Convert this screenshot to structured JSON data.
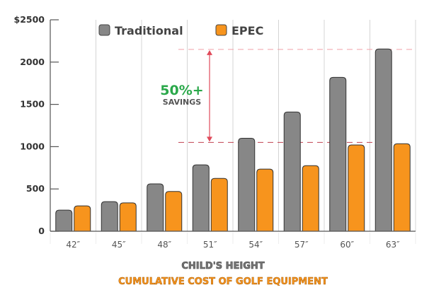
{
  "chart_data": {
    "type": "bar",
    "title": "CUMULATIVE COST OF GOLF EQUIPMENT",
    "xlabel": "CHILD'S HEIGHT",
    "ylabel": "",
    "categories": [
      "42″",
      "45″",
      "48″",
      "51″",
      "54″",
      "57″",
      "60″",
      "63″"
    ],
    "series": [
      {
        "name": "Traditional",
        "color": "#878787",
        "values": [
          250,
          350,
          560,
          785,
          1100,
          1410,
          1820,
          2155
        ]
      },
      {
        "name": "EPEC",
        "color": "#f7941d",
        "values": [
          300,
          335,
          470,
          625,
          735,
          775,
          1020,
          1035
        ]
      }
    ],
    "ylim": [
      0,
      2500
    ],
    "yticks": [
      0,
      500,
      1000,
      1500,
      2000,
      2500
    ],
    "ytick_labels": [
      "0",
      "500",
      "1000",
      "1500",
      "2000",
      "$2500"
    ],
    "grid": "vertical",
    "legend": "top",
    "annotation": {
      "headline": "50%+",
      "subtext": "SAVINGS",
      "upper_value": 2150,
      "lower_value": 1050,
      "color": "#2aa84a",
      "line_color": "#e04a5a"
    }
  }
}
